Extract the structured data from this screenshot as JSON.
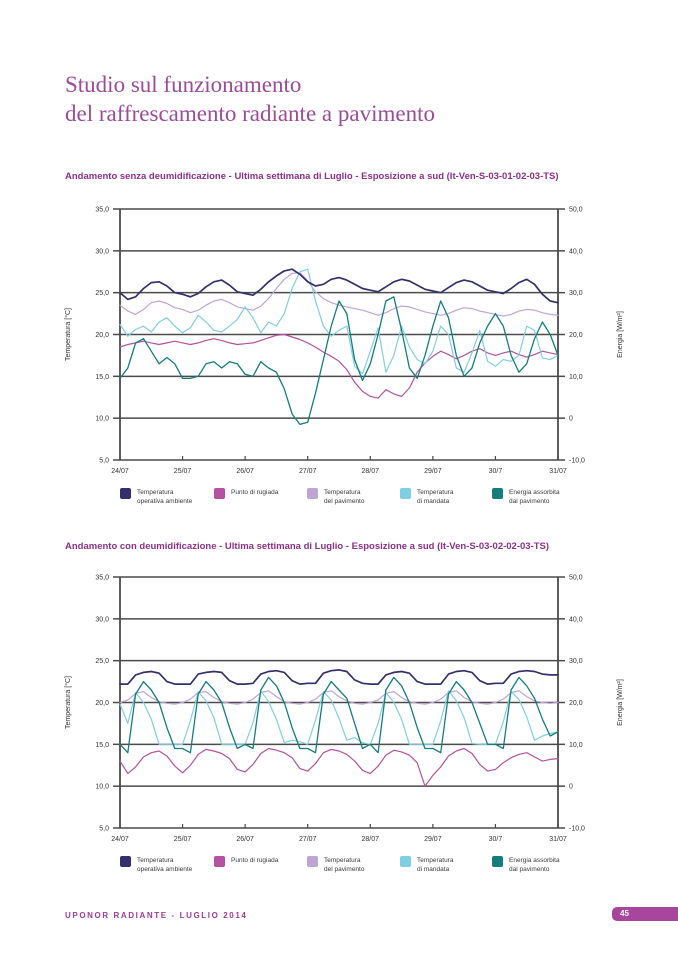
{
  "page": {
    "title_line1": "Studio sul funzionamento",
    "title_line2": "del raffrescamento radiante a pavimento",
    "footer_text": "UPONOR RADIANTE - LUGLIO 2014",
    "page_number": "45"
  },
  "colors": {
    "heading": "#9b4c98",
    "chart-title": "#8e3087",
    "footer": "#a23a98",
    "badge-bg": "#a8459c",
    "badge-text": "#ffffff",
    "grid": "#4c4a4a",
    "tick-text": "#333333"
  },
  "legend": [
    {
      "name": "Temperatura operativa ambiente",
      "lines": [
        "Temperatura",
        "operativa ambiente"
      ],
      "color": "#35306b"
    },
    {
      "name": "Punto di rugiada",
      "lines": [
        "Punto di rugiada"
      ],
      "color": "#b5519e"
    },
    {
      "name": "Temperatura del pavimento",
      "lines": [
        "Temperatura",
        "del pavimento"
      ],
      "color": "#c0a5d3"
    },
    {
      "name": "Temperatura di mandata",
      "lines": [
        "Temperatura",
        "di mandata"
      ],
      "color": "#7fcfe2"
    },
    {
      "name": "Energia assorbita dal pavimento",
      "lines": [
        "Energia assorbita",
        "dal pavimento"
      ],
      "color": "#157d7e"
    }
  ],
  "chart_data": [
    {
      "type": "line",
      "title": "Andamento senza deumidificazione - Ultima settimana di Luglio - Esposizione a sud (It-Ven-S-03-01-02-03-TS)",
      "grid": true,
      "legend_position": "bottom",
      "x": {
        "labels": [
          "24/07",
          "25/07",
          "26/07",
          "27/07",
          "28/07",
          "29/07",
          "30/7",
          "31/07"
        ],
        "start_day": 0,
        "end_day": 7,
        "step_days": 0.125
      },
      "y_left": {
        "label": "Temperatura [°C]",
        "min": 5,
        "max": 35,
        "tick_values": [
          35,
          30,
          25,
          20,
          15,
          10,
          5
        ],
        "tick_labels": [
          "35,0",
          "30,0",
          "25,0",
          "20,0",
          "15,0",
          "10,0",
          "5,0"
        ]
      },
      "y_right": {
        "label": "Energia [W/m²]",
        "min": -10,
        "max": 50,
        "tick_values": [
          50,
          40,
          30,
          20,
          10,
          0,
          -10
        ],
        "tick_labels": [
          "50,0",
          "40,0",
          "30,0",
          "20,0",
          "10,0",
          "0",
          "-10,0"
        ]
      },
      "series": [
        {
          "name": "Temperatura operativa ambiente",
          "axis": "left",
          "unit": "°C",
          "color": "#35306b",
          "width": 1.7,
          "values": [
            25.0,
            24.2,
            24.5,
            25.5,
            26.2,
            26.3,
            25.8,
            25.0,
            24.8,
            24.5,
            24.9,
            25.7,
            26.3,
            26.5,
            25.9,
            25.1,
            24.9,
            24.7,
            25.4,
            26.3,
            27.0,
            27.6,
            27.8,
            27.2,
            26.3,
            25.8,
            26.0,
            26.6,
            26.8,
            26.5,
            26.0,
            25.5,
            25.3,
            25.1,
            25.7,
            26.3,
            26.6,
            26.4,
            25.9,
            25.4,
            25.2,
            25.0,
            25.6,
            26.2,
            26.5,
            26.3,
            25.8,
            25.3,
            25.1,
            24.9,
            25.5,
            26.2,
            26.6,
            26.0,
            24.8,
            24.0,
            23.8
          ]
        },
        {
          "name": "Punto di rugiada",
          "axis": "left",
          "unit": "°C",
          "color": "#b5519e",
          "width": 1.2,
          "values": [
            18.5,
            18.8,
            19.0,
            19.2,
            19.0,
            18.8,
            19.0,
            19.2,
            19.0,
            18.8,
            19.0,
            19.3,
            19.5,
            19.3,
            19.0,
            18.8,
            18.9,
            19.0,
            19.3,
            19.6,
            19.9,
            20.0,
            19.7,
            19.4,
            19.0,
            18.5,
            17.9,
            17.4,
            16.8,
            15.8,
            14.3,
            13.2,
            12.6,
            12.4,
            13.4,
            12.9,
            12.6,
            13.6,
            15.5,
            16.6,
            17.4,
            18.0,
            17.6,
            17.1,
            17.5,
            18.0,
            18.3,
            17.8,
            17.5,
            17.8,
            18.0,
            17.6,
            17.3,
            17.6,
            18.0,
            17.8,
            17.6
          ]
        },
        {
          "name": "Temperatura del pavimento",
          "axis": "left",
          "unit": "°C",
          "color": "#c0a5d3",
          "width": 1.2,
          "values": [
            23.5,
            22.8,
            22.4,
            23.0,
            23.8,
            24.0,
            23.7,
            23.2,
            23.0,
            22.6,
            22.9,
            23.5,
            24.0,
            24.2,
            23.8,
            23.3,
            23.1,
            22.9,
            23.4,
            24.3,
            25.5,
            26.6,
            27.3,
            27.4,
            26.4,
            25.1,
            24.3,
            23.8,
            23.5,
            23.3,
            23.1,
            22.9,
            22.6,
            22.3,
            22.6,
            23.1,
            23.4,
            23.3,
            23.0,
            22.7,
            22.5,
            22.3,
            22.5,
            22.9,
            23.2,
            23.1,
            22.8,
            22.6,
            22.4,
            22.2,
            22.4,
            22.8,
            23.0,
            22.9,
            22.6,
            22.4,
            22.3
          ]
        },
        {
          "name": "Temperatura di mandata",
          "axis": "left",
          "unit": "°C",
          "color": "#7fcfe2",
          "width": 1.2,
          "values": [
            21.2,
            19.8,
            20.6,
            21.0,
            20.3,
            21.5,
            22.0,
            21.0,
            20.2,
            20.8,
            22.3,
            21.5,
            20.5,
            20.3,
            21.0,
            21.8,
            23.3,
            22.0,
            20.2,
            21.5,
            21.0,
            22.5,
            25.5,
            27.5,
            27.8,
            24.0,
            21.0,
            19.8,
            20.5,
            21.0,
            16.2,
            15.3,
            18.0,
            20.8,
            15.5,
            17.5,
            21.0,
            18.5,
            17.0,
            16.5,
            18.0,
            21.0,
            20.0,
            16.0,
            15.5,
            17.8,
            20.5,
            16.8,
            16.2,
            17.0,
            16.8,
            17.5,
            21.0,
            20.5,
            17.2,
            17.0,
            17.5
          ]
        },
        {
          "name": "Energia assorbita dal pavimento",
          "axis": "right",
          "unit": "W/m²",
          "color": "#157d7e",
          "width": 1.3,
          "values": [
            9.5,
            12,
            18,
            19,
            16,
            13,
            14.5,
            13,
            9.5,
            9.5,
            10,
            13,
            13.5,
            12,
            13.5,
            13,
            10.5,
            10,
            13.5,
            12,
            11,
            7,
            1,
            -1.5,
            -1,
            6,
            14,
            22,
            28,
            25,
            14,
            9,
            13,
            20,
            28,
            29,
            21,
            12,
            9.5,
            15,
            22,
            28,
            24,
            15,
            10,
            12,
            18,
            22,
            25,
            22,
            15,
            11,
            13,
            19,
            23,
            20,
            15
          ]
        }
      ]
    },
    {
      "type": "line",
      "title": "Andamento con deumidificazione - Ultima settimana di Luglio - Esposizione a sud (It-Ven-S-03-02-02-03-TS)",
      "grid": true,
      "legend_position": "bottom",
      "x": {
        "labels": [
          "24/07",
          "25/07",
          "26/07",
          "27/07",
          "28/07",
          "29/07",
          "30/7",
          "31/07"
        ],
        "start_day": 0,
        "end_day": 7,
        "step_days": 0.125
      },
      "y_left": {
        "label": "Temperatura [°C]",
        "min": 5,
        "max": 35,
        "tick_values": [
          35,
          30,
          25,
          20,
          15,
          10,
          5
        ],
        "tick_labels": [
          "35,0",
          "30,0",
          "25,0",
          "20,0",
          "15,0",
          "10,0",
          "5,0"
        ]
      },
      "y_right": {
        "label": "Energia [W/m²]",
        "min": -10,
        "max": 50,
        "tick_values": [
          50,
          40,
          30,
          20,
          10,
          0,
          -10
        ],
        "tick_labels": [
          "50,0",
          "40,0",
          "30,0",
          "20,0",
          "10,0",
          "0",
          "-10,0"
        ]
      },
      "series": [
        {
          "name": "Temperatura operativa ambiente",
          "axis": "left",
          "unit": "°C",
          "color": "#35306b",
          "width": 1.7,
          "values": [
            22.2,
            22.2,
            23.3,
            23.6,
            23.7,
            23.5,
            22.5,
            22.2,
            22.2,
            22.2,
            23.4,
            23.6,
            23.7,
            23.6,
            22.6,
            22.2,
            22.2,
            22.3,
            23.4,
            23.7,
            23.8,
            23.6,
            22.6,
            22.2,
            22.3,
            22.3,
            23.5,
            23.8,
            23.9,
            23.7,
            22.7,
            22.3,
            22.2,
            22.2,
            23.3,
            23.6,
            23.7,
            23.5,
            22.5,
            22.2,
            22.2,
            22.2,
            23.4,
            23.7,
            23.8,
            23.6,
            22.6,
            22.2,
            22.3,
            22.3,
            23.4,
            23.7,
            23.8,
            23.7,
            23.4,
            23.3,
            23.3
          ]
        },
        {
          "name": "Punto di rugiada",
          "axis": "left",
          "unit": "°C",
          "color": "#b5519e",
          "width": 1.2,
          "values": [
            13.0,
            11.5,
            12.3,
            13.5,
            14.0,
            14.2,
            13.6,
            12.4,
            11.6,
            12.5,
            13.8,
            14.4,
            14.2,
            13.9,
            13.3,
            12.0,
            11.7,
            12.6,
            13.9,
            14.5,
            14.3,
            14.0,
            13.4,
            12.1,
            11.8,
            12.7,
            14.0,
            14.4,
            14.2,
            13.8,
            13.0,
            11.9,
            11.5,
            12.4,
            13.7,
            14.3,
            14.1,
            13.7,
            12.8,
            10.0,
            11.3,
            12.3,
            13.6,
            14.2,
            14.5,
            13.9,
            12.6,
            11.8,
            12.0,
            12.8,
            13.4,
            13.8,
            14.0,
            13.5,
            13.0,
            13.2,
            13.3
          ]
        },
        {
          "name": "Temperatura del pavimento",
          "axis": "left",
          "unit": "°C",
          "color": "#c0a5d3",
          "width": 1.2,
          "values": [
            20.0,
            20.3,
            21.1,
            21.3,
            20.6,
            20.1,
            19.9,
            19.8,
            20.0,
            20.4,
            21.2,
            21.3,
            20.6,
            20.1,
            19.9,
            19.8,
            20.0,
            20.4,
            21.2,
            21.4,
            20.7,
            20.1,
            19.9,
            19.8,
            20.0,
            20.4,
            21.2,
            21.4,
            20.7,
            20.2,
            19.9,
            19.8,
            20.0,
            20.3,
            21.1,
            21.3,
            20.6,
            20.1,
            19.9,
            19.8,
            20.0,
            20.4,
            21.2,
            21.4,
            20.6,
            20.1,
            19.9,
            19.8,
            20.0,
            20.4,
            21.2,
            21.4,
            20.7,
            20.2,
            20.0,
            19.9,
            20.0
          ]
        },
        {
          "name": "Temperatura di mandata",
          "axis": "left",
          "unit": "°C",
          "color": "#7fcfe2",
          "width": 1.2,
          "values": [
            19.8,
            17.5,
            21.2,
            20.0,
            18.0,
            15.0,
            15.0,
            15.0,
            15.0,
            17.8,
            21.3,
            20.2,
            18.2,
            15.0,
            15.0,
            15.0,
            15.0,
            17.6,
            21.4,
            20.1,
            18.0,
            15.2,
            15.5,
            15.3,
            15.0,
            17.9,
            21.3,
            20.3,
            18.1,
            15.5,
            15.8,
            15.2,
            15.0,
            17.5,
            21.2,
            20.0,
            18.0,
            15.0,
            15.0,
            15.0,
            15.0,
            17.8,
            21.4,
            20.2,
            18.2,
            15.1,
            15.0,
            15.0,
            15.0,
            17.7,
            21.3,
            20.4,
            18.3,
            15.5,
            16.0,
            16.3,
            16.5
          ]
        },
        {
          "name": "Energia assorbita dal pavimento",
          "axis": "right",
          "unit": "W/m²",
          "color": "#157d7e",
          "width": 1.3,
          "values": [
            10,
            8,
            22,
            25,
            23,
            20,
            14,
            9,
            9,
            8,
            22,
            25,
            23,
            20,
            14,
            9,
            10,
            9,
            23,
            26,
            24,
            20,
            14,
            9,
            9,
            8,
            22,
            25,
            23,
            21,
            15,
            9,
            10,
            8,
            23,
            26,
            24,
            20,
            14,
            9,
            9,
            8,
            22,
            25,
            23,
            20,
            15,
            10,
            10,
            9,
            23,
            26,
            24,
            21,
            16,
            12,
            13
          ]
        }
      ]
    }
  ]
}
